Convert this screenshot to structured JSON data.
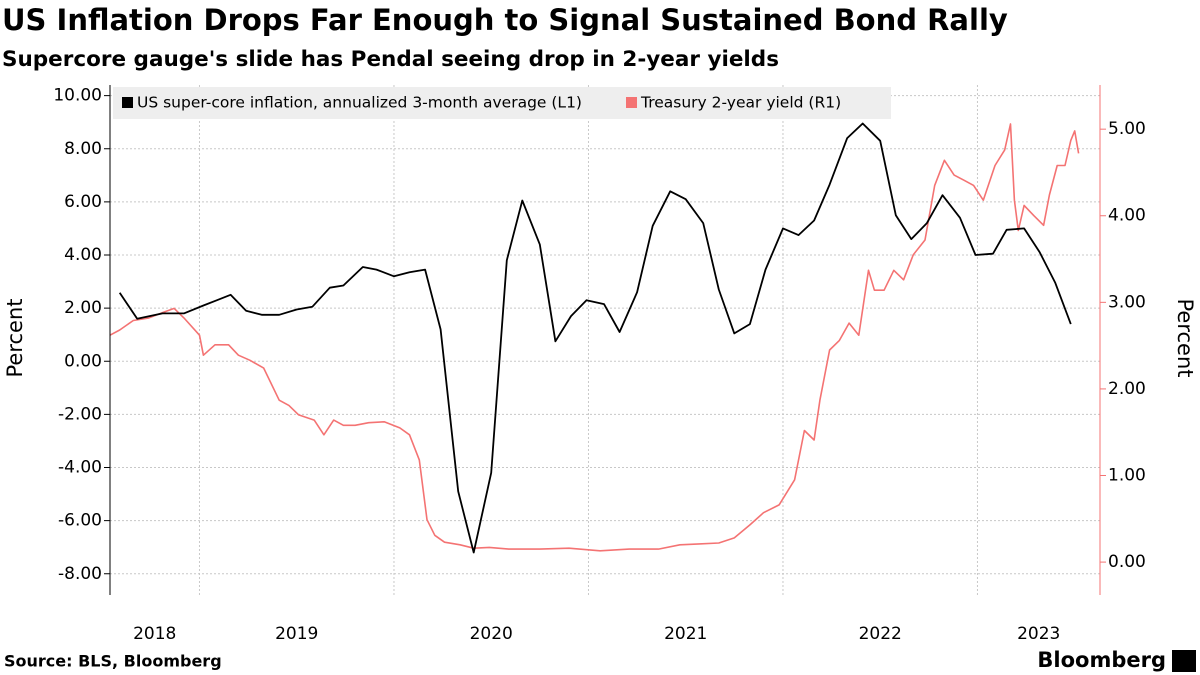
{
  "chart_data": {
    "type": "line",
    "title": "US Inflation Drops Far Enough to Signal Sustained Bond Rally",
    "subtitle": "Supercore gauge's slide has Pendal seeing drop in 2-year yields",
    "ylabel": "Percent",
    "y2label": "Percent",
    "source": "Source: BLS, Bloomberg",
    "brand": "Bloomberg",
    "legend": "upper left",
    "grid": true,
    "xlim": [
      2018.54,
      2023.63
    ],
    "xticks": [
      2018,
      2019,
      2020,
      2021,
      2022,
      2023
    ],
    "ylim": [
      -8.8,
      10.4
    ],
    "yticks": [
      {
        "value": -8,
        "label": "-8.00"
      },
      {
        "value": -6,
        "label": "-6.00"
      },
      {
        "value": -4,
        "label": "-4.00"
      },
      {
        "value": -2,
        "label": "-2.00"
      },
      {
        "value": 0,
        "label": "0.00"
      },
      {
        "value": 2,
        "label": "2.00"
      },
      {
        "value": 4,
        "label": "4.00"
      },
      {
        "value": 6,
        "label": "6.00"
      },
      {
        "value": 8,
        "label": "8.00"
      },
      {
        "value": 10,
        "label": "10.00"
      }
    ],
    "y2lim": [
      -0.38,
      5.51
    ],
    "y2ticks": [
      {
        "value": 0,
        "label": "0.00"
      },
      {
        "value": 1,
        "label": "1.00"
      },
      {
        "value": 2,
        "label": "2.00"
      },
      {
        "value": 3,
        "label": "3.00"
      },
      {
        "value": 4,
        "label": "4.00"
      },
      {
        "value": 5,
        "label": "5.00"
      }
    ],
    "series": [
      {
        "name": "US super-core inflation, annualized 3-month average (L1)",
        "color": "#000000",
        "axis": "y",
        "x": [
          2018.59,
          2018.68,
          2018.81,
          2018.92,
          2019.02,
          2019.09,
          2019.16,
          2019.24,
          2019.32,
          2019.41,
          2019.5,
          2019.58,
          2019.67,
          2019.74,
          2019.84,
          2019.91,
          2020.0,
          2020.08,
          2020.16,
          2020.24,
          2020.33,
          2020.41,
          2020.5,
          2020.58,
          2020.66,
          2020.75,
          2020.83,
          2020.91,
          2020.99,
          2021.08,
          2021.16,
          2021.25,
          2021.33,
          2021.42,
          2021.5,
          2021.59,
          2021.67,
          2021.75,
          2021.83,
          2021.91,
          2022.0,
          2022.08,
          2022.16,
          2022.24,
          2022.33,
          2022.41,
          2022.5,
          2022.58,
          2022.66,
          2022.74,
          2022.82,
          2022.91,
          2022.99,
          2023.08,
          2023.15,
          2023.24,
          2023.32,
          2023.4,
          2023.48
        ],
        "values": [
          2.58,
          1.6,
          1.8,
          1.8,
          2.1,
          2.3,
          2.5,
          1.9,
          1.75,
          1.75,
          1.95,
          2.05,
          2.77,
          2.85,
          3.55,
          3.45,
          3.2,
          3.35,
          3.45,
          1.2,
          -4.9,
          -7.2,
          -4.2,
          3.8,
          6.05,
          4.4,
          0.75,
          1.7,
          2.3,
          2.15,
          1.1,
          2.6,
          5.1,
          6.4,
          6.1,
          5.2,
          2.7,
          1.05,
          1.4,
          3.45,
          5.0,
          4.75,
          5.3,
          6.65,
          8.4,
          8.95,
          8.3,
          5.5,
          4.6,
          5.2,
          6.25,
          5.4,
          4.0,
          4.05,
          4.95,
          5.0,
          4.1,
          2.95,
          1.4
        ]
      },
      {
        "name": "Treasury 2-year yield (R1)",
        "color": "#f47373",
        "axis": "y2",
        "x": [
          2018.54,
          2018.59,
          2018.66,
          2018.74,
          2018.82,
          2018.87,
          2018.92,
          2019.0,
          2019.02,
          2019.08,
          2019.15,
          2019.2,
          2019.26,
          2019.33,
          2019.41,
          2019.46,
          2019.51,
          2019.59,
          2019.64,
          2019.69,
          2019.74,
          2019.8,
          2019.87,
          2019.95,
          2020.03,
          2020.08,
          2020.13,
          2020.17,
          2020.21,
          2020.26,
          2020.34,
          2020.41,
          2020.49,
          2020.59,
          2020.75,
          2020.9,
          2021.06,
          2021.21,
          2021.36,
          2021.47,
          2021.57,
          2021.67,
          2021.75,
          2021.83,
          2021.9,
          2021.98,
          2022.06,
          2022.11,
          2022.16,
          2022.19,
          2022.24,
          2022.29,
          2022.34,
          2022.39,
          2022.44,
          2022.47,
          2022.52,
          2022.57,
          2022.62,
          2022.67,
          2022.73,
          2022.78,
          2022.83,
          2022.88,
          2022.93,
          2022.98,
          2023.03,
          2023.09,
          2023.14,
          2023.17,
          2023.19,
          2023.21,
          2023.24,
          2023.29,
          2023.34,
          2023.37,
          2023.41,
          2023.45,
          2023.48,
          2023.5,
          2023.52
        ],
        "values": [
          2.62,
          2.68,
          2.79,
          2.82,
          2.89,
          2.93,
          2.82,
          2.62,
          2.39,
          2.51,
          2.51,
          2.39,
          2.33,
          2.24,
          1.87,
          1.81,
          1.7,
          1.64,
          1.47,
          1.64,
          1.58,
          1.58,
          1.61,
          1.62,
          1.55,
          1.47,
          1.18,
          0.49,
          0.31,
          0.23,
          0.2,
          0.16,
          0.17,
          0.15,
          0.15,
          0.16,
          0.13,
          0.15,
          0.15,
          0.2,
          0.21,
          0.22,
          0.28,
          0.43,
          0.57,
          0.66,
          0.95,
          1.52,
          1.41,
          1.87,
          2.45,
          2.56,
          2.76,
          2.62,
          3.37,
          3.14,
          3.14,
          3.37,
          3.26,
          3.55,
          3.72,
          4.35,
          4.64,
          4.47,
          4.41,
          4.35,
          4.18,
          4.58,
          4.76,
          5.06,
          4.18,
          3.83,
          4.12,
          4.0,
          3.89,
          4.24,
          4.58,
          4.58,
          4.87,
          4.98,
          4.72
        ]
      }
    ]
  }
}
